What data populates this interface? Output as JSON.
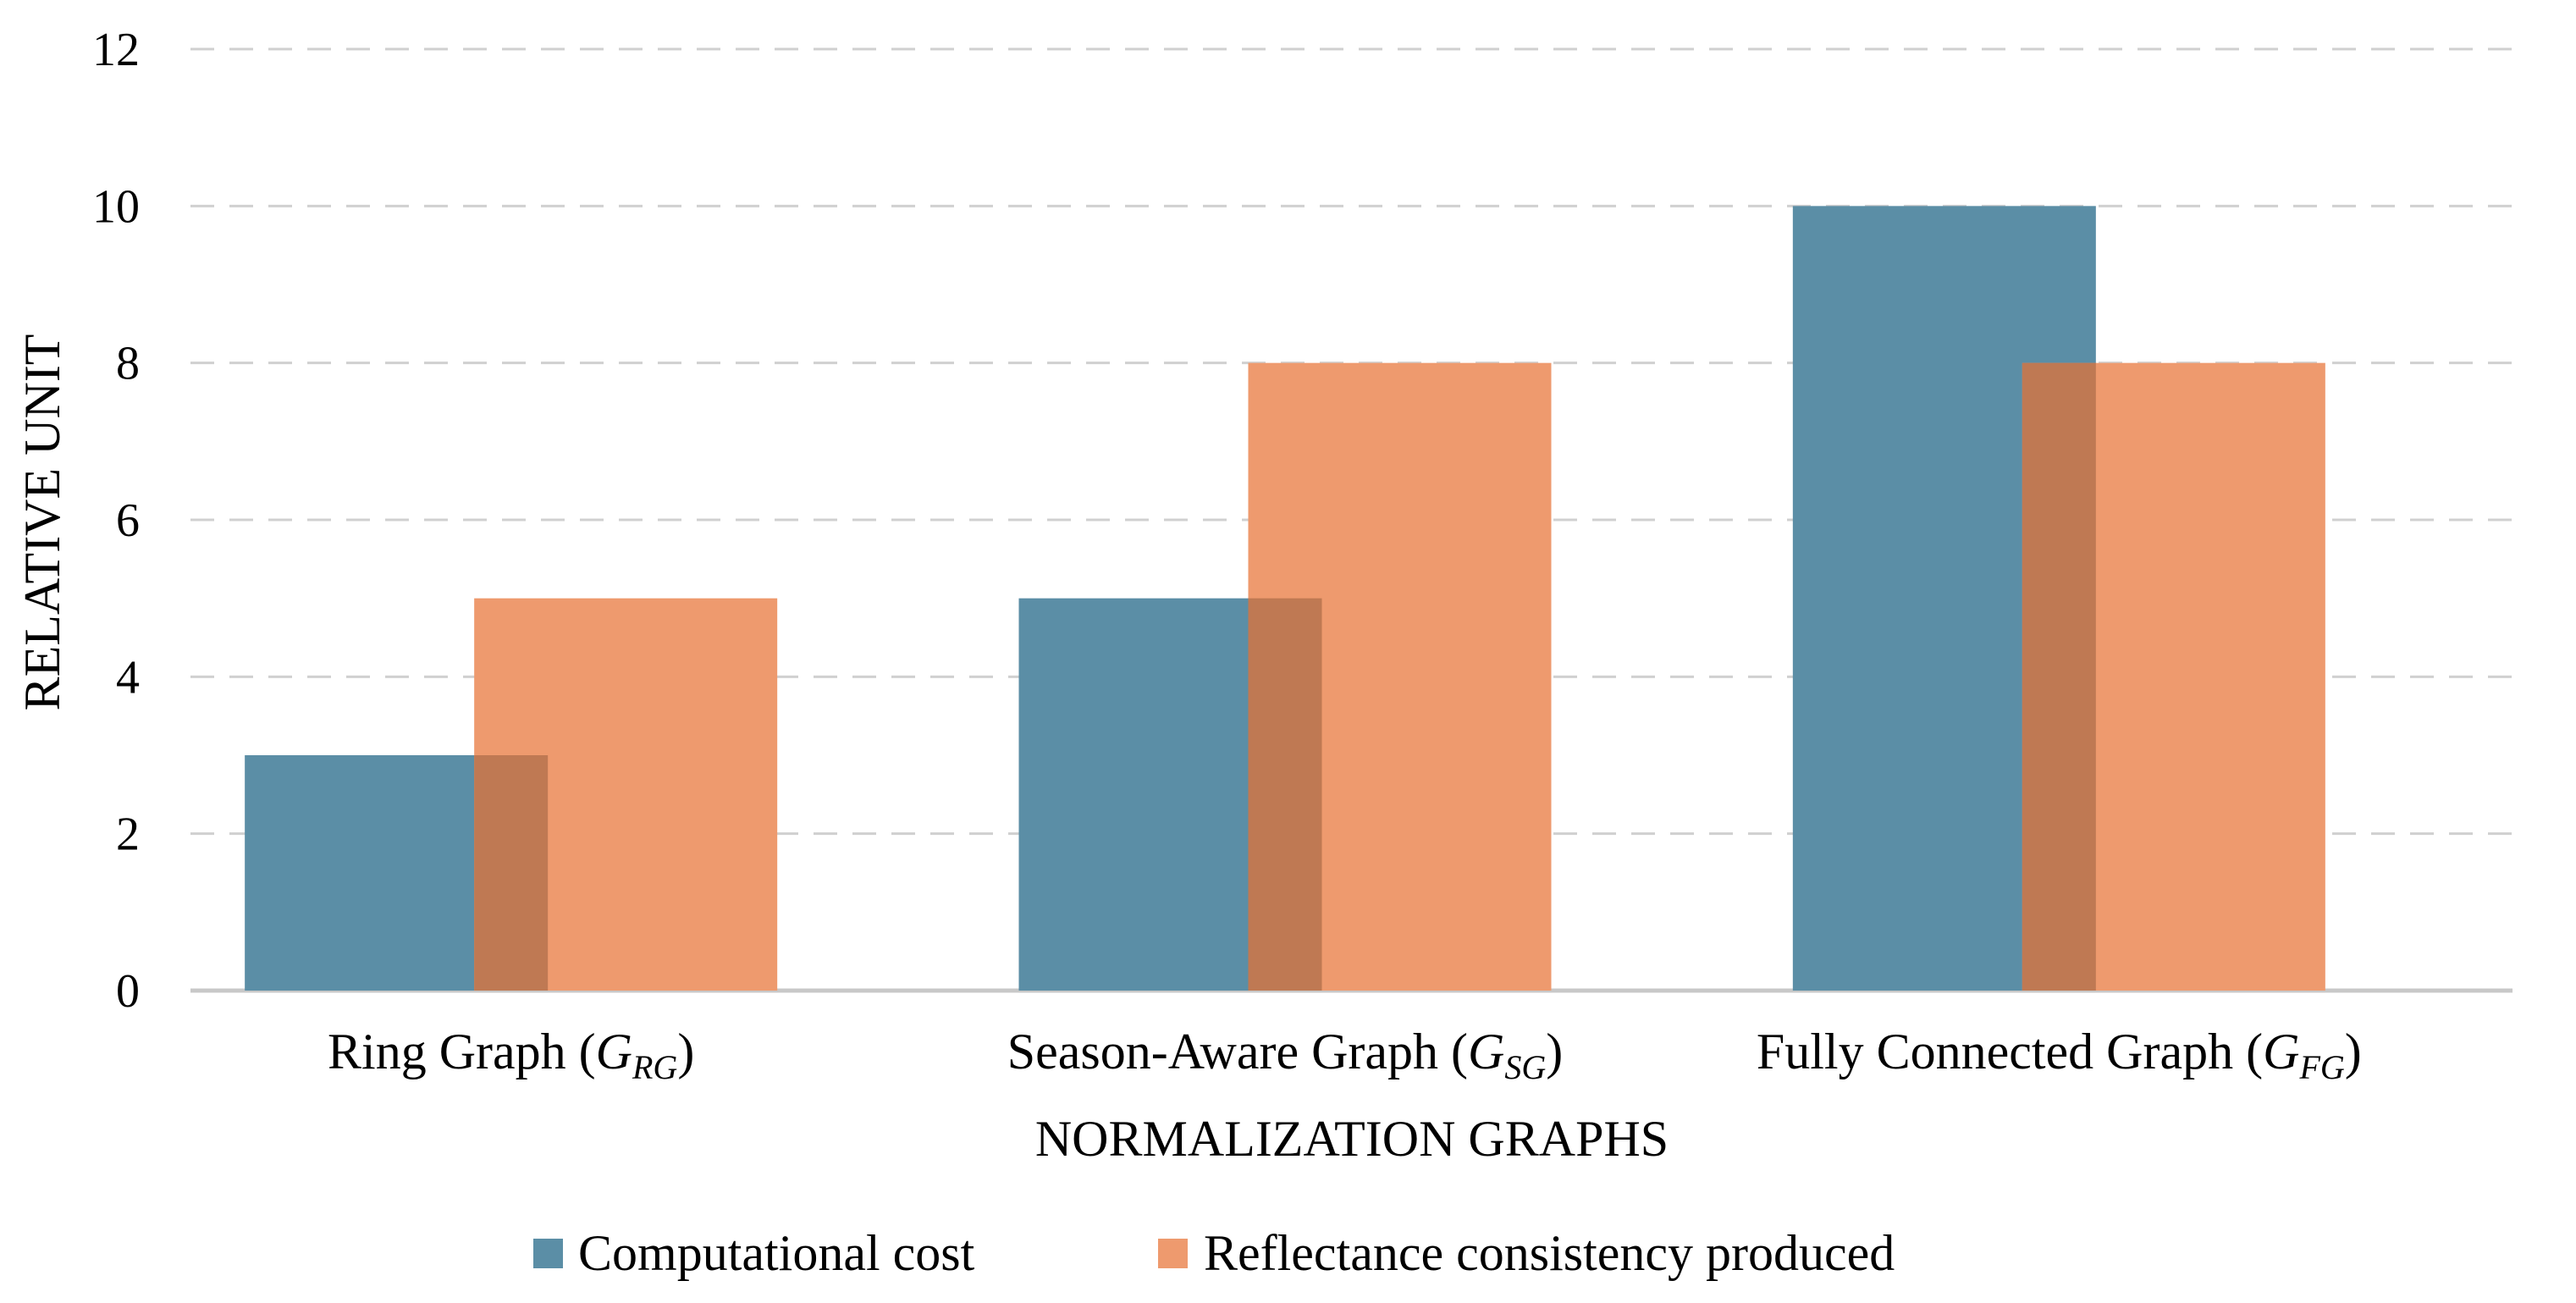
{
  "chart_data": {
    "type": "bar",
    "title": "",
    "xlabel": "NORMALIZATION GRAPHS",
    "ylabel": "RELATIVE UNIT",
    "ylim": [
      0,
      12
    ],
    "yticks": [
      "0",
      "2",
      "4",
      "6",
      "8",
      "10",
      "12"
    ],
    "grid": true,
    "legend_position": "bottom",
    "categories": [
      {
        "name": "Ring Graph",
        "symbol": "G",
        "sub": "RG"
      },
      {
        "name": "Season-Aware Graph",
        "symbol": "G",
        "sub": "SG"
      },
      {
        "name": "Fully Connected Graph",
        "symbol": "G",
        "sub": "FG"
      }
    ],
    "series": [
      {
        "name": "Computational cost",
        "color": "#5b8ea6",
        "values": [
          3,
          5,
          10
        ]
      },
      {
        "name": "Reflectance consistency produced",
        "color": "#ee9a6e",
        "values": [
          5,
          8,
          8
        ]
      }
    ],
    "overlap_color": "#bf7953"
  }
}
